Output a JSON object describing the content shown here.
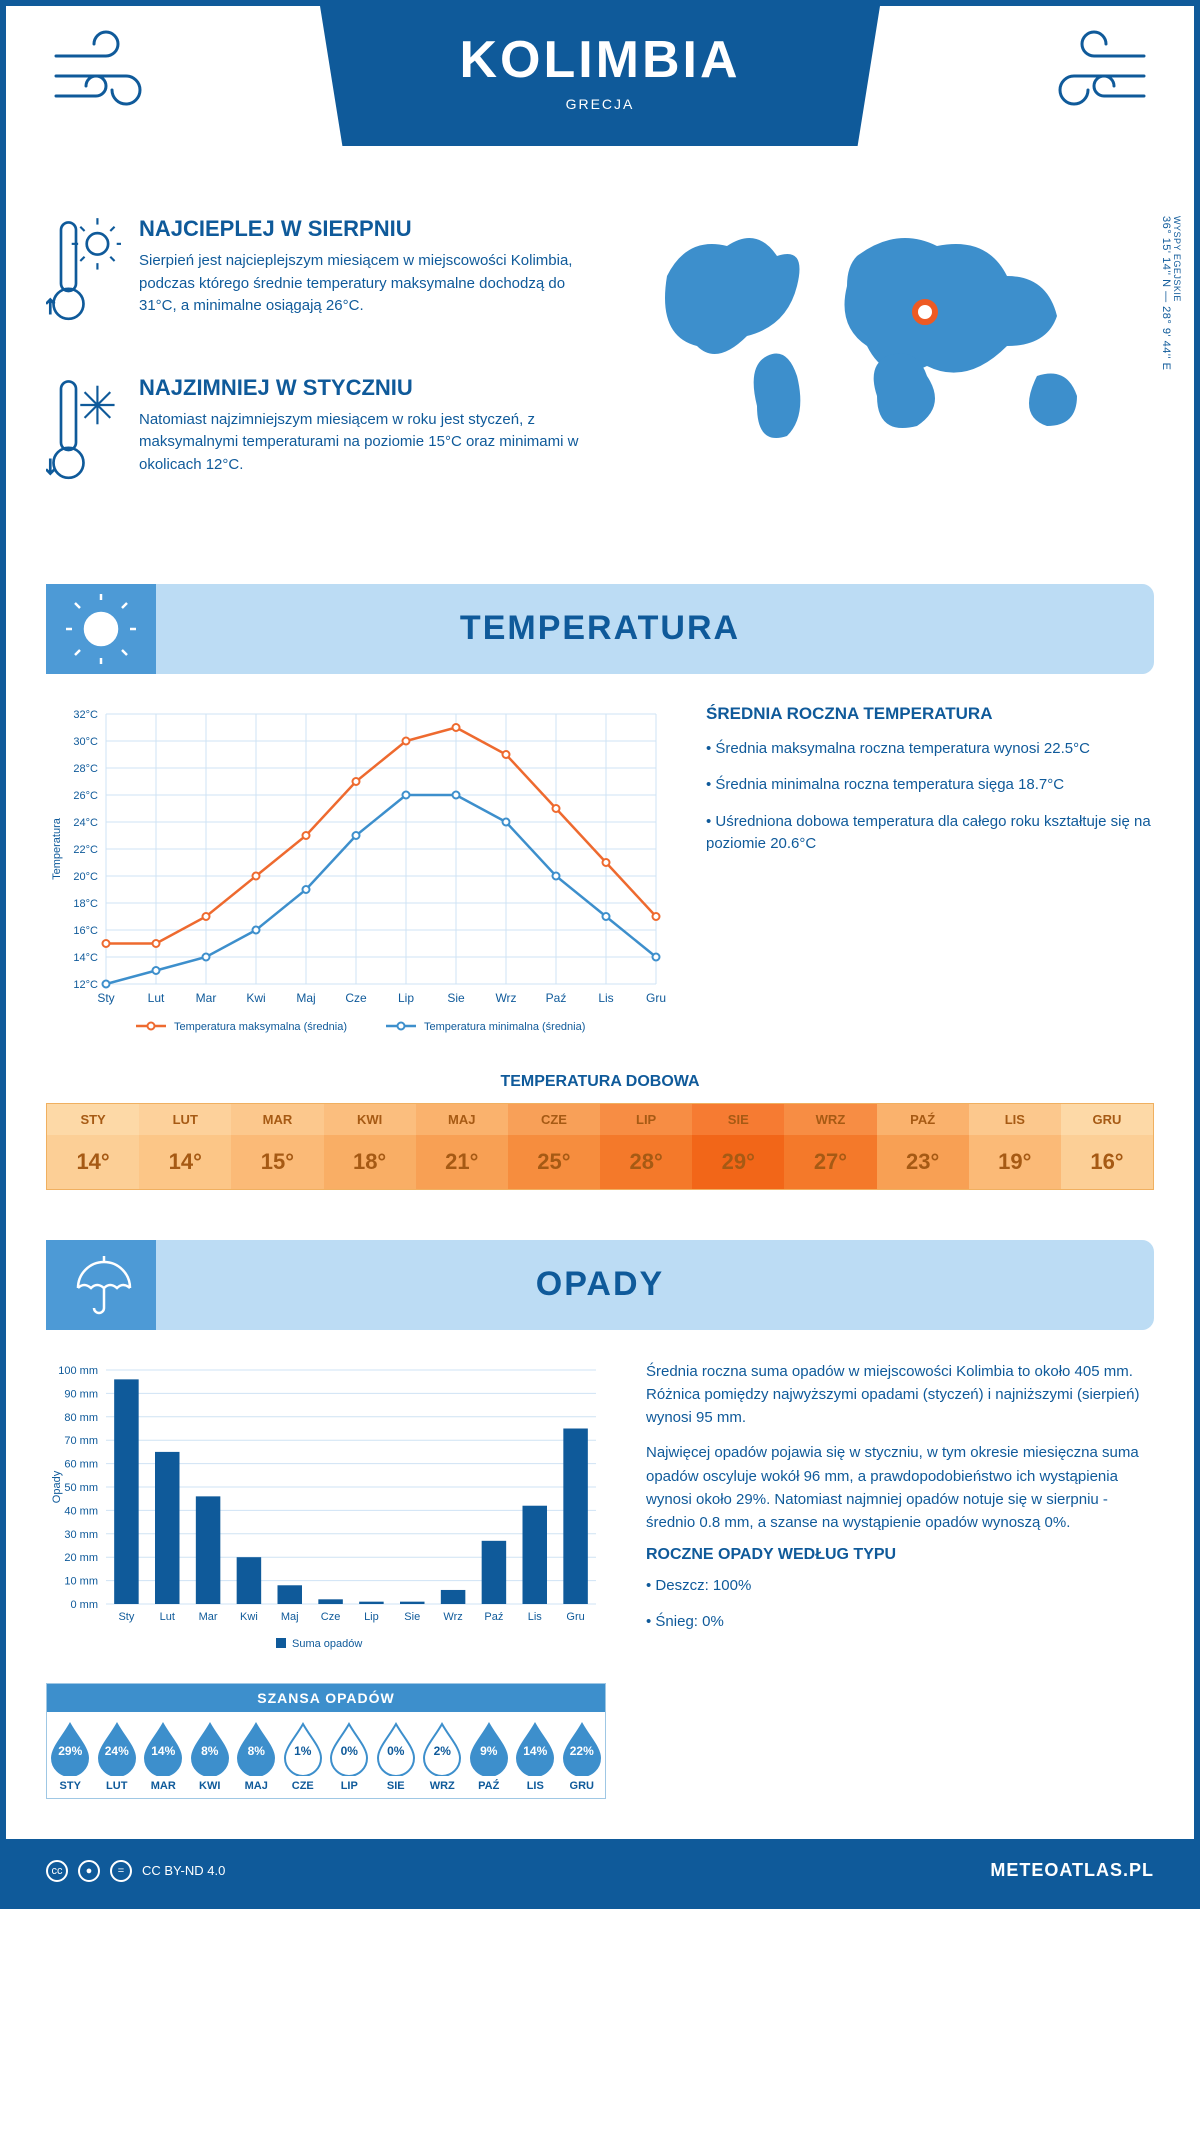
{
  "header": {
    "title": "KOLIMBIA",
    "subtitle": "GRECJA"
  },
  "coords": {
    "region": "WYSPY EGEJSKIE",
    "lat": "36° 15' 14'' N",
    "lon": "28° 9' 44'' E"
  },
  "intro": {
    "warm": {
      "title": "NAJCIEPLEJ W SIERPNIU",
      "text": "Sierpień jest najcieplejszym miesiącem w miejscowości Kolimbia, podczas którego średnie temperatury maksymalne dochodzą do 31°C, a minimalne osiągają 26°C."
    },
    "cold": {
      "title": "NAJZIMNIEJ W STYCZNIU",
      "text": "Natomiast najzimniejszym miesiącem w roku jest styczeń, z maksymalnymi temperaturami na poziomie 15°C oraz minimami w okolicach 12°C."
    }
  },
  "temperature": {
    "section_title": "TEMPERATURA",
    "text_title": "ŚREDNIA ROCZNA TEMPERATURA",
    "bullets": [
      "Średnia maksymalna roczna temperatura wynosi 22.5°C",
      "Średnia minimalna roczna temperatura sięga 18.7°C",
      "Uśredniona dobowa temperatura dla całego roku kształtuje się na poziomie 20.6°C"
    ],
    "chart": {
      "type": "line",
      "months": [
        "Sty",
        "Lut",
        "Mar",
        "Kwi",
        "Maj",
        "Cze",
        "Lip",
        "Sie",
        "Wrz",
        "Paź",
        "Lis",
        "Gru"
      ],
      "max": [
        15,
        15,
        17,
        20,
        23,
        27,
        30,
        31,
        29,
        25,
        21,
        17
      ],
      "min": [
        12,
        13,
        14,
        16,
        19,
        23,
        26,
        26,
        24,
        20,
        17,
        14
      ],
      "max_color": "#ee6a2f",
      "min_color": "#3d8fcc",
      "grid_color": "#cfe3f4",
      "ylim": [
        12,
        32
      ],
      "ytick_step": 2,
      "ylabel": "Temperatura",
      "legend_max": "Temperatura maksymalna (średnia)",
      "legend_min": "Temperatura minimalna (średnia)"
    },
    "daily": {
      "title": "TEMPERATURA DOBOWA",
      "months": [
        "STY",
        "LUT",
        "MAR",
        "KWI",
        "MAJ",
        "CZE",
        "LIP",
        "SIE",
        "WRZ",
        "PAŹ",
        "LIS",
        "GRU"
      ],
      "values": [
        14,
        14,
        15,
        18,
        21,
        25,
        28,
        29,
        27,
        23,
        19,
        16
      ],
      "label_colors": [
        "#fdd9a7",
        "#fdd19b",
        "#fcc88d",
        "#fbbe7e",
        "#fab26d",
        "#f8a058",
        "#f78d44",
        "#f67b32",
        "#f78d44",
        "#fab26d",
        "#fcc88d",
        "#fdd9a7"
      ],
      "value_colors": [
        "#fccf96",
        "#fcc687",
        "#fbba77",
        "#f9ae65",
        "#f8a054",
        "#f68d3e",
        "#f4792a",
        "#f26618",
        "#f4792a",
        "#f8a054",
        "#fbba77",
        "#fccf96"
      ],
      "text_color": "#a65a14"
    }
  },
  "precip": {
    "section_title": "OPADY",
    "text1": "Średnia roczna suma opadów w miejscowości Kolimbia to około 405 mm. Różnica pomiędzy najwyższymi opadami (styczeń) i najniższymi (sierpień) wynosi 95 mm.",
    "text2": "Najwięcej opadów pojawia się w styczniu, w tym okresie miesięczna suma opadów oscyluje wokół 96 mm, a prawdopodobieństwo ich wystąpienia wynosi około 29%. Natomiast najmniej opadów notuje się w sierpniu - średnio 0.8 mm, a szanse na wystąpienie opadów wynoszą 0%.",
    "bar_chart": {
      "type": "bar",
      "months": [
        "Sty",
        "Lut",
        "Mar",
        "Kwi",
        "Maj",
        "Cze",
        "Lip",
        "Sie",
        "Wrz",
        "Paź",
        "Lis",
        "Gru"
      ],
      "values": [
        96,
        65,
        46,
        20,
        8,
        2,
        1,
        1,
        6,
        27,
        42,
        75
      ],
      "bar_color": "#0f5a9a",
      "grid_color": "#cfe3f4",
      "ylim": [
        0,
        100
      ],
      "ytick_step": 10,
      "ylabel": "Opady",
      "legend": "Suma opadów"
    },
    "chance": {
      "title": "SZANSA OPADÓW",
      "months": [
        "STY",
        "LUT",
        "MAR",
        "KWI",
        "MAJ",
        "CZE",
        "LIP",
        "SIE",
        "WRZ",
        "PAŹ",
        "LIS",
        "GRU"
      ],
      "values": [
        29,
        24,
        14,
        8,
        8,
        1,
        0,
        0,
        2,
        9,
        14,
        22
      ],
      "fill_color": "#3d8fcc",
      "empty_stroke": "#3d8fcc"
    },
    "annual_type": {
      "title": "ROCZNE OPADY WEDŁUG TYPU",
      "items": [
        "Deszcz: 100%",
        "Śnieg: 0%"
      ]
    }
  },
  "footer": {
    "license": "CC BY-ND 4.0",
    "brand": "METEOATLAS.PL"
  },
  "colors": {
    "primary": "#0f5a9a",
    "light": "#bcdcf4",
    "mid": "#4d9ad6"
  }
}
